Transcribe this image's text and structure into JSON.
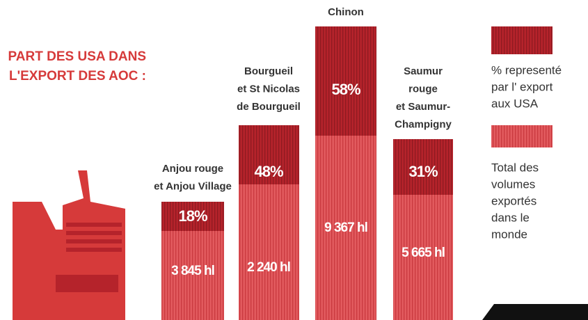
{
  "title": {
    "lines": [
      "PART DES USA DANS",
      "L'EXPORT DES AOC :"
    ]
  },
  "items": [
    {
      "label_lines": [
        "Anjou rouge",
        "et Anjou Village"
      ],
      "share": "18%",
      "volume": "3 845 hl"
    },
    {
      "label_lines": [
        "Bourgueil",
        "et St Nicolas",
        "de Bourgueil"
      ],
      "share": "48%",
      "volume": "2 240 hl"
    },
    {
      "label_lines": [
        "Chinon"
      ],
      "share": "58%",
      "volume": "9 367 hl"
    },
    {
      "label_lines": [
        "Saumur",
        "rouge",
        "et Saumur-",
        "Champigny"
      ],
      "share": "31%",
      "volume": "5 665 hl"
    }
  ],
  "legend": {
    "share_lines": [
      "% representé",
      "par l' export",
      "aux USA"
    ],
    "volume_lines": [
      "Total des",
      "volumes",
      "exportés",
      "dans le",
      "monde"
    ]
  }
}
